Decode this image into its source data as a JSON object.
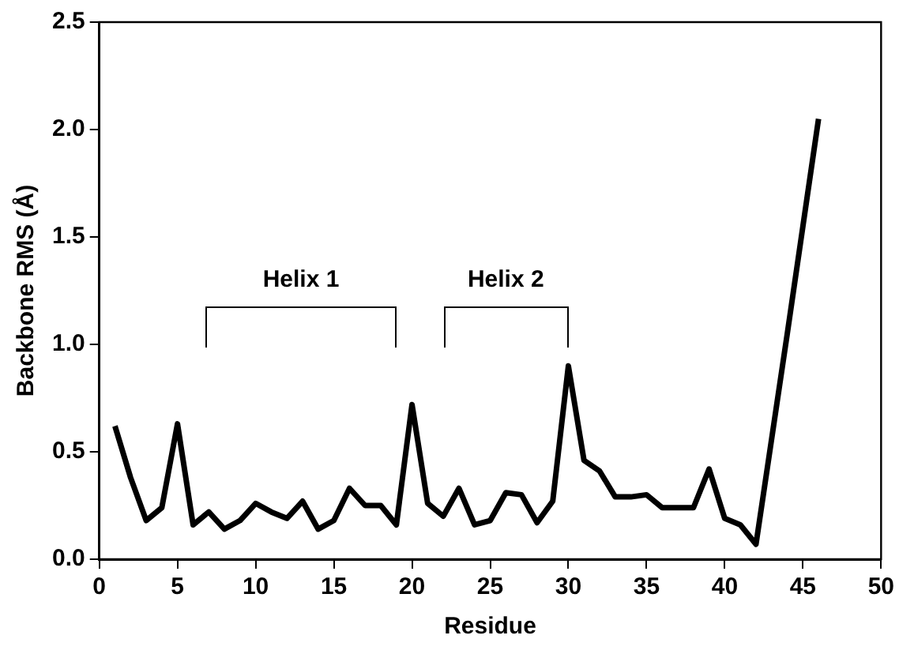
{
  "chart_data": {
    "type": "line",
    "xlabel": "Residue",
    "ylabel": "Backbone RMS (Å)",
    "x": [
      1,
      2,
      3,
      4,
      5,
      6,
      7,
      8,
      9,
      10,
      11,
      12,
      13,
      14,
      15,
      16,
      17,
      18,
      19,
      20,
      21,
      22,
      23,
      24,
      25,
      26,
      27,
      28,
      29,
      30,
      31,
      32,
      33,
      34,
      35,
      36,
      37,
      38,
      39,
      40,
      41,
      42,
      43,
      44,
      45,
      46
    ],
    "series": [
      {
        "color": "#000000",
        "values": [
          0.62,
          0.38,
          0.18,
          0.24,
          0.63,
          0.16,
          0.22,
          0.14,
          0.18,
          0.26,
          0.22,
          0.19,
          0.27,
          0.14,
          0.18,
          0.33,
          0.25,
          0.25,
          0.16,
          0.72,
          0.26,
          0.2,
          0.33,
          0.16,
          0.18,
          0.31,
          0.3,
          0.17,
          0.27,
          0.9,
          0.46,
          0.41,
          0.29,
          0.29,
          0.3,
          0.24,
          0.24,
          0.24,
          0.42,
          0.19,
          0.16,
          0.07,
          0.56,
          1.05,
          1.55,
          2.05
        ]
      }
    ],
    "xlim": [
      0,
      50
    ],
    "xticks": [
      0,
      5,
      10,
      15,
      20,
      25,
      30,
      35,
      40,
      45,
      50
    ],
    "ylim": [
      0,
      2.5
    ],
    "yticks": [
      {
        "value": 0,
        "label": "0.0"
      },
      {
        "value": 0.5,
        "label": "0.5"
      },
      {
        "value": 1,
        "label": "1.0"
      },
      {
        "value": 1.5,
        "label": "1.5"
      },
      {
        "value": 2,
        "label": "2.0"
      },
      {
        "value": 2.5,
        "label": "2.5"
      }
    ],
    "annotations": [
      "Helix 1",
      "Helix 2"
    ],
    "grid": false,
    "legend": false,
    "marker": "none",
    "line_style": "solid"
  }
}
